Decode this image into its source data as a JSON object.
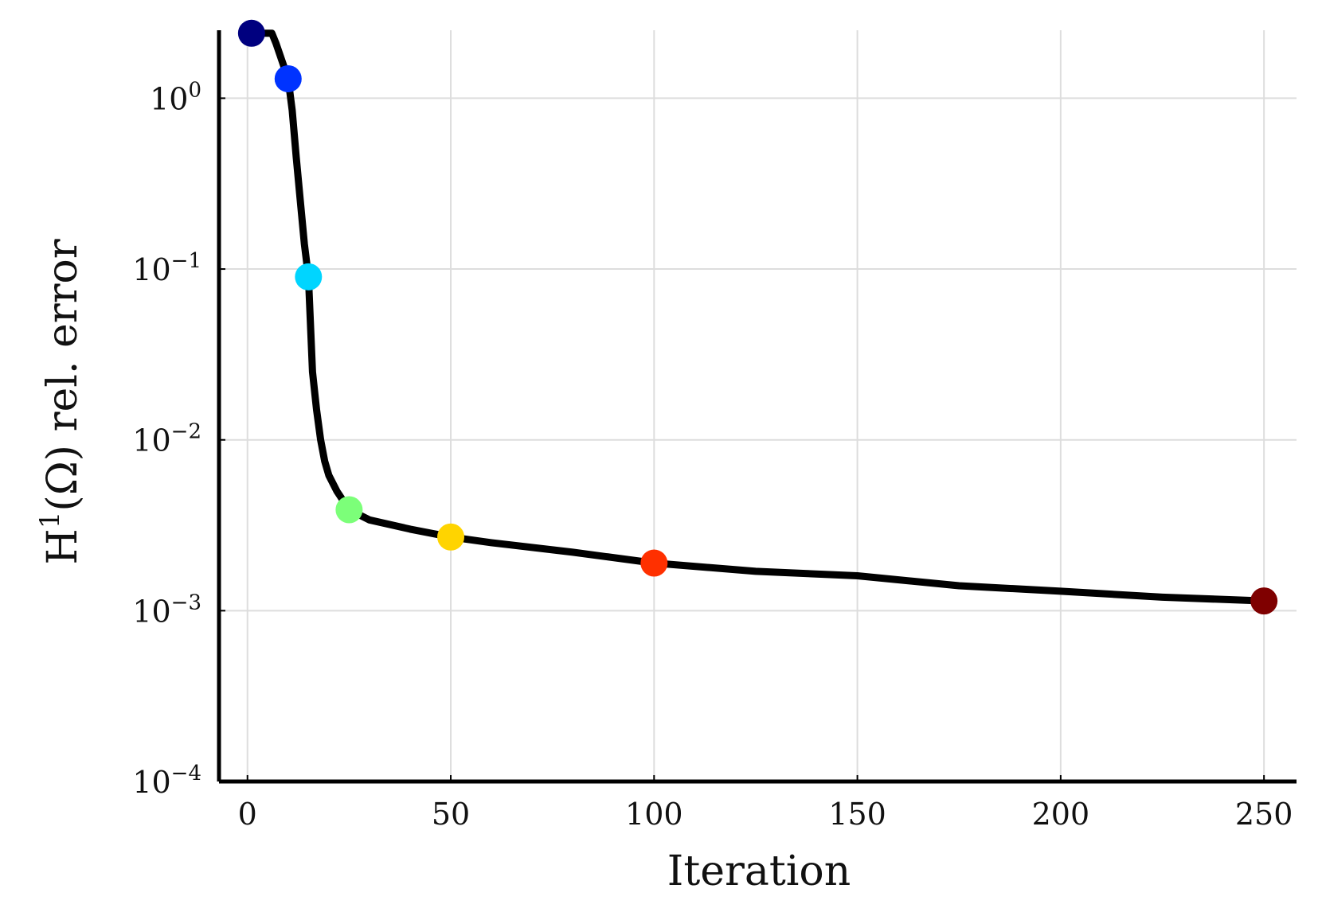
{
  "chart_data": {
    "type": "line",
    "title": "",
    "xlabel": "Iteration",
    "ylabel": {
      "base": "H",
      "sup": "1",
      "rest": "(Ω) rel. error"
    },
    "xlim": [
      -7,
      258
    ],
    "ylim": [
      0.0001,
      2.5
    ],
    "y_scale": "log",
    "grid": true,
    "x_ticks": [
      0,
      50,
      100,
      150,
      200,
      250
    ],
    "x_tick_labels": [
      "0",
      "50",
      "100",
      "150",
      "200",
      "250"
    ],
    "y_ticks": [
      1,
      0.1,
      0.01,
      0.001,
      0.0001
    ],
    "y_tick_labels": [
      {
        "base": "10",
        "exp": "0"
      },
      {
        "base": "10",
        "exp": "−1"
      },
      {
        "base": "10",
        "exp": "−2"
      },
      {
        "base": "10",
        "exp": "−3"
      },
      {
        "base": "10",
        "exp": "−4"
      }
    ],
    "line": {
      "color": "#000000",
      "x": [
        1,
        4,
        6,
        7,
        10,
        11,
        12,
        13,
        14,
        15,
        16,
        17,
        18,
        19,
        20,
        22,
        25,
        30,
        40,
        50,
        60,
        80,
        100,
        125,
        150,
        175,
        200,
        225,
        250
      ],
      "y": [
        2.4,
        2.4,
        2.4,
        2.1,
        1.3,
        0.85,
        0.45,
        0.25,
        0.14,
        0.09,
        0.025,
        0.015,
        0.01,
        0.0075,
        0.0062,
        0.005,
        0.0039,
        0.0034,
        0.003,
        0.0027,
        0.0025,
        0.0022,
        0.0019,
        0.0017,
        0.0016,
        0.0014,
        0.0013,
        0.0012,
        0.00114
      ]
    },
    "markers": [
      {
        "x": 1,
        "y": 2.4,
        "color": "#00007f"
      },
      {
        "x": 10,
        "y": 1.3,
        "color": "#0033ff"
      },
      {
        "x": 15,
        "y": 0.09,
        "color": "#00d5ff"
      },
      {
        "x": 25,
        "y": 0.0039,
        "color": "#7cff79"
      },
      {
        "x": 50,
        "y": 0.0027,
        "color": "#ffd400"
      },
      {
        "x": 100,
        "y": 0.0019,
        "color": "#ff3000"
      },
      {
        "x": 250,
        "y": 0.00114,
        "color": "#7f0000"
      }
    ]
  }
}
